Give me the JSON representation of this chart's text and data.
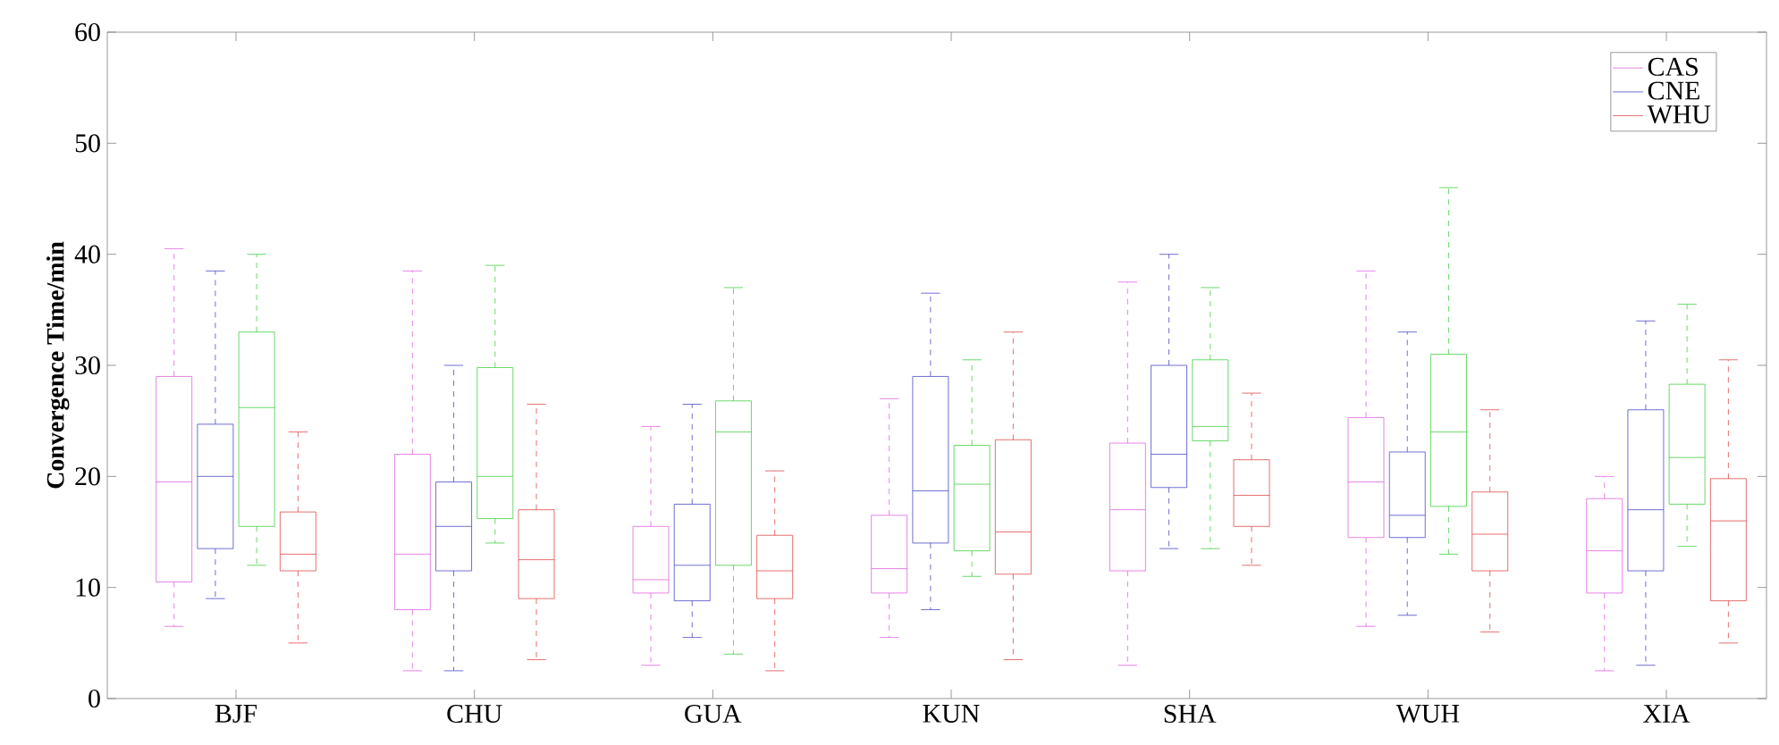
{
  "chart_data": {
    "type": "box",
    "ylabel": "Convergence Time/min",
    "categories": [
      "BJF",
      "CHU",
      "GUA",
      "KUN",
      "SHA",
      "WUH",
      "XIA"
    ],
    "ylim": [
      0,
      60
    ],
    "yticks": [
      0,
      10,
      20,
      30,
      40,
      50,
      60
    ],
    "legend": "top right",
    "grid": false,
    "line_style": "dashed",
    "series": [
      {
        "name": "CAS",
        "color": "#e066e0",
        "boxes": [
          {
            "low": 6.5,
            "q1": 10.5,
            "median": 19.5,
            "q3": 29,
            "high": 40.5
          },
          {
            "low": 2.5,
            "q1": 8,
            "median": 13,
            "q3": 22,
            "high": 38.5
          },
          {
            "low": 3,
            "q1": 9.5,
            "median": 10.7,
            "q3": 15.5,
            "high": 24.5
          },
          {
            "low": 5.5,
            "q1": 9.5,
            "median": 11.7,
            "q3": 16.5,
            "high": 27
          },
          {
            "low": 3,
            "q1": 11.5,
            "median": 17,
            "q3": 23,
            "high": 37.5
          },
          {
            "low": 6.5,
            "q1": 14.5,
            "median": 19.5,
            "q3": 25.3,
            "high": 38.5
          },
          {
            "low": 2.5,
            "q1": 9.5,
            "median": 13.3,
            "q3": 18,
            "high": 20
          }
        ]
      },
      {
        "name": "CNE",
        "color": "#4b4bc8",
        "boxes": [
          {
            "low": 9,
            "q1": 13.5,
            "median": 20,
            "q3": 24.7,
            "high": 38.5
          },
          {
            "low": 2.5,
            "q1": 11.5,
            "median": 15.5,
            "q3": 19.5,
            "high": 30
          },
          {
            "low": 5.5,
            "q1": 8.8,
            "median": 12,
            "q3": 17.5,
            "high": 26.5
          },
          {
            "low": 8,
            "q1": 14,
            "median": 18.7,
            "q3": 29,
            "high": 36.5
          },
          {
            "low": 13.5,
            "q1": 19,
            "median": 22,
            "q3": 30,
            "high": 40
          },
          {
            "low": 7.5,
            "q1": 14.5,
            "median": 16.5,
            "q3": 22.2,
            "high": 33
          },
          {
            "low": 3,
            "q1": 11.5,
            "median": 17,
            "q3": 26,
            "high": 34
          }
        ]
      },
      {
        "color": "#44d044",
        "boxes": [
          {
            "low": 12,
            "q1": 15.5,
            "median": 26.2,
            "q3": 33,
            "high": 40
          },
          {
            "low": 14,
            "q1": 16.2,
            "median": 20,
            "q3": 29.8,
            "high": 39
          },
          {
            "low": 4,
            "q1": 12,
            "median": 24,
            "q3": 26.8,
            "high": 37
          },
          {
            "low": 11,
            "q1": 13.3,
            "median": 19.3,
            "q3": 22.8,
            "high": 30.5
          },
          {
            "low": 13.5,
            "q1": 23.2,
            "median": 24.5,
            "q3": 30.5,
            "high": 37
          },
          {
            "low": 13,
            "q1": 17.3,
            "median": 24,
            "q3": 31,
            "high": 46
          },
          {
            "low": 13.7,
            "q1": 17.5,
            "median": 21.7,
            "q3": 28.3,
            "high": 35.5
          }
        ]
      },
      {
        "name": "WHU",
        "color": "#e04b4b",
        "boxes": [
          {
            "low": 5,
            "q1": 11.5,
            "median": 13,
            "q3": 16.8,
            "high": 24
          },
          {
            "low": 3.5,
            "q1": 9,
            "median": 12.5,
            "q3": 17,
            "high": 26.5
          },
          {
            "low": 2.5,
            "q1": 9,
            "median": 11.5,
            "q3": 14.7,
            "high": 20.5
          },
          {
            "low": 3.5,
            "q1": 11.2,
            "median": 15,
            "q3": 23.3,
            "high": 33
          },
          {
            "low": 12,
            "q1": 15.5,
            "median": 18.3,
            "q3": 21.5,
            "high": 27.5
          },
          {
            "low": 6,
            "q1": 11.5,
            "median": 14.8,
            "q3": 18.6,
            "high": 26
          },
          {
            "low": 5,
            "q1": 8.8,
            "median": 16,
            "q3": 19.8,
            "high": 30.5
          }
        ]
      }
    ]
  }
}
